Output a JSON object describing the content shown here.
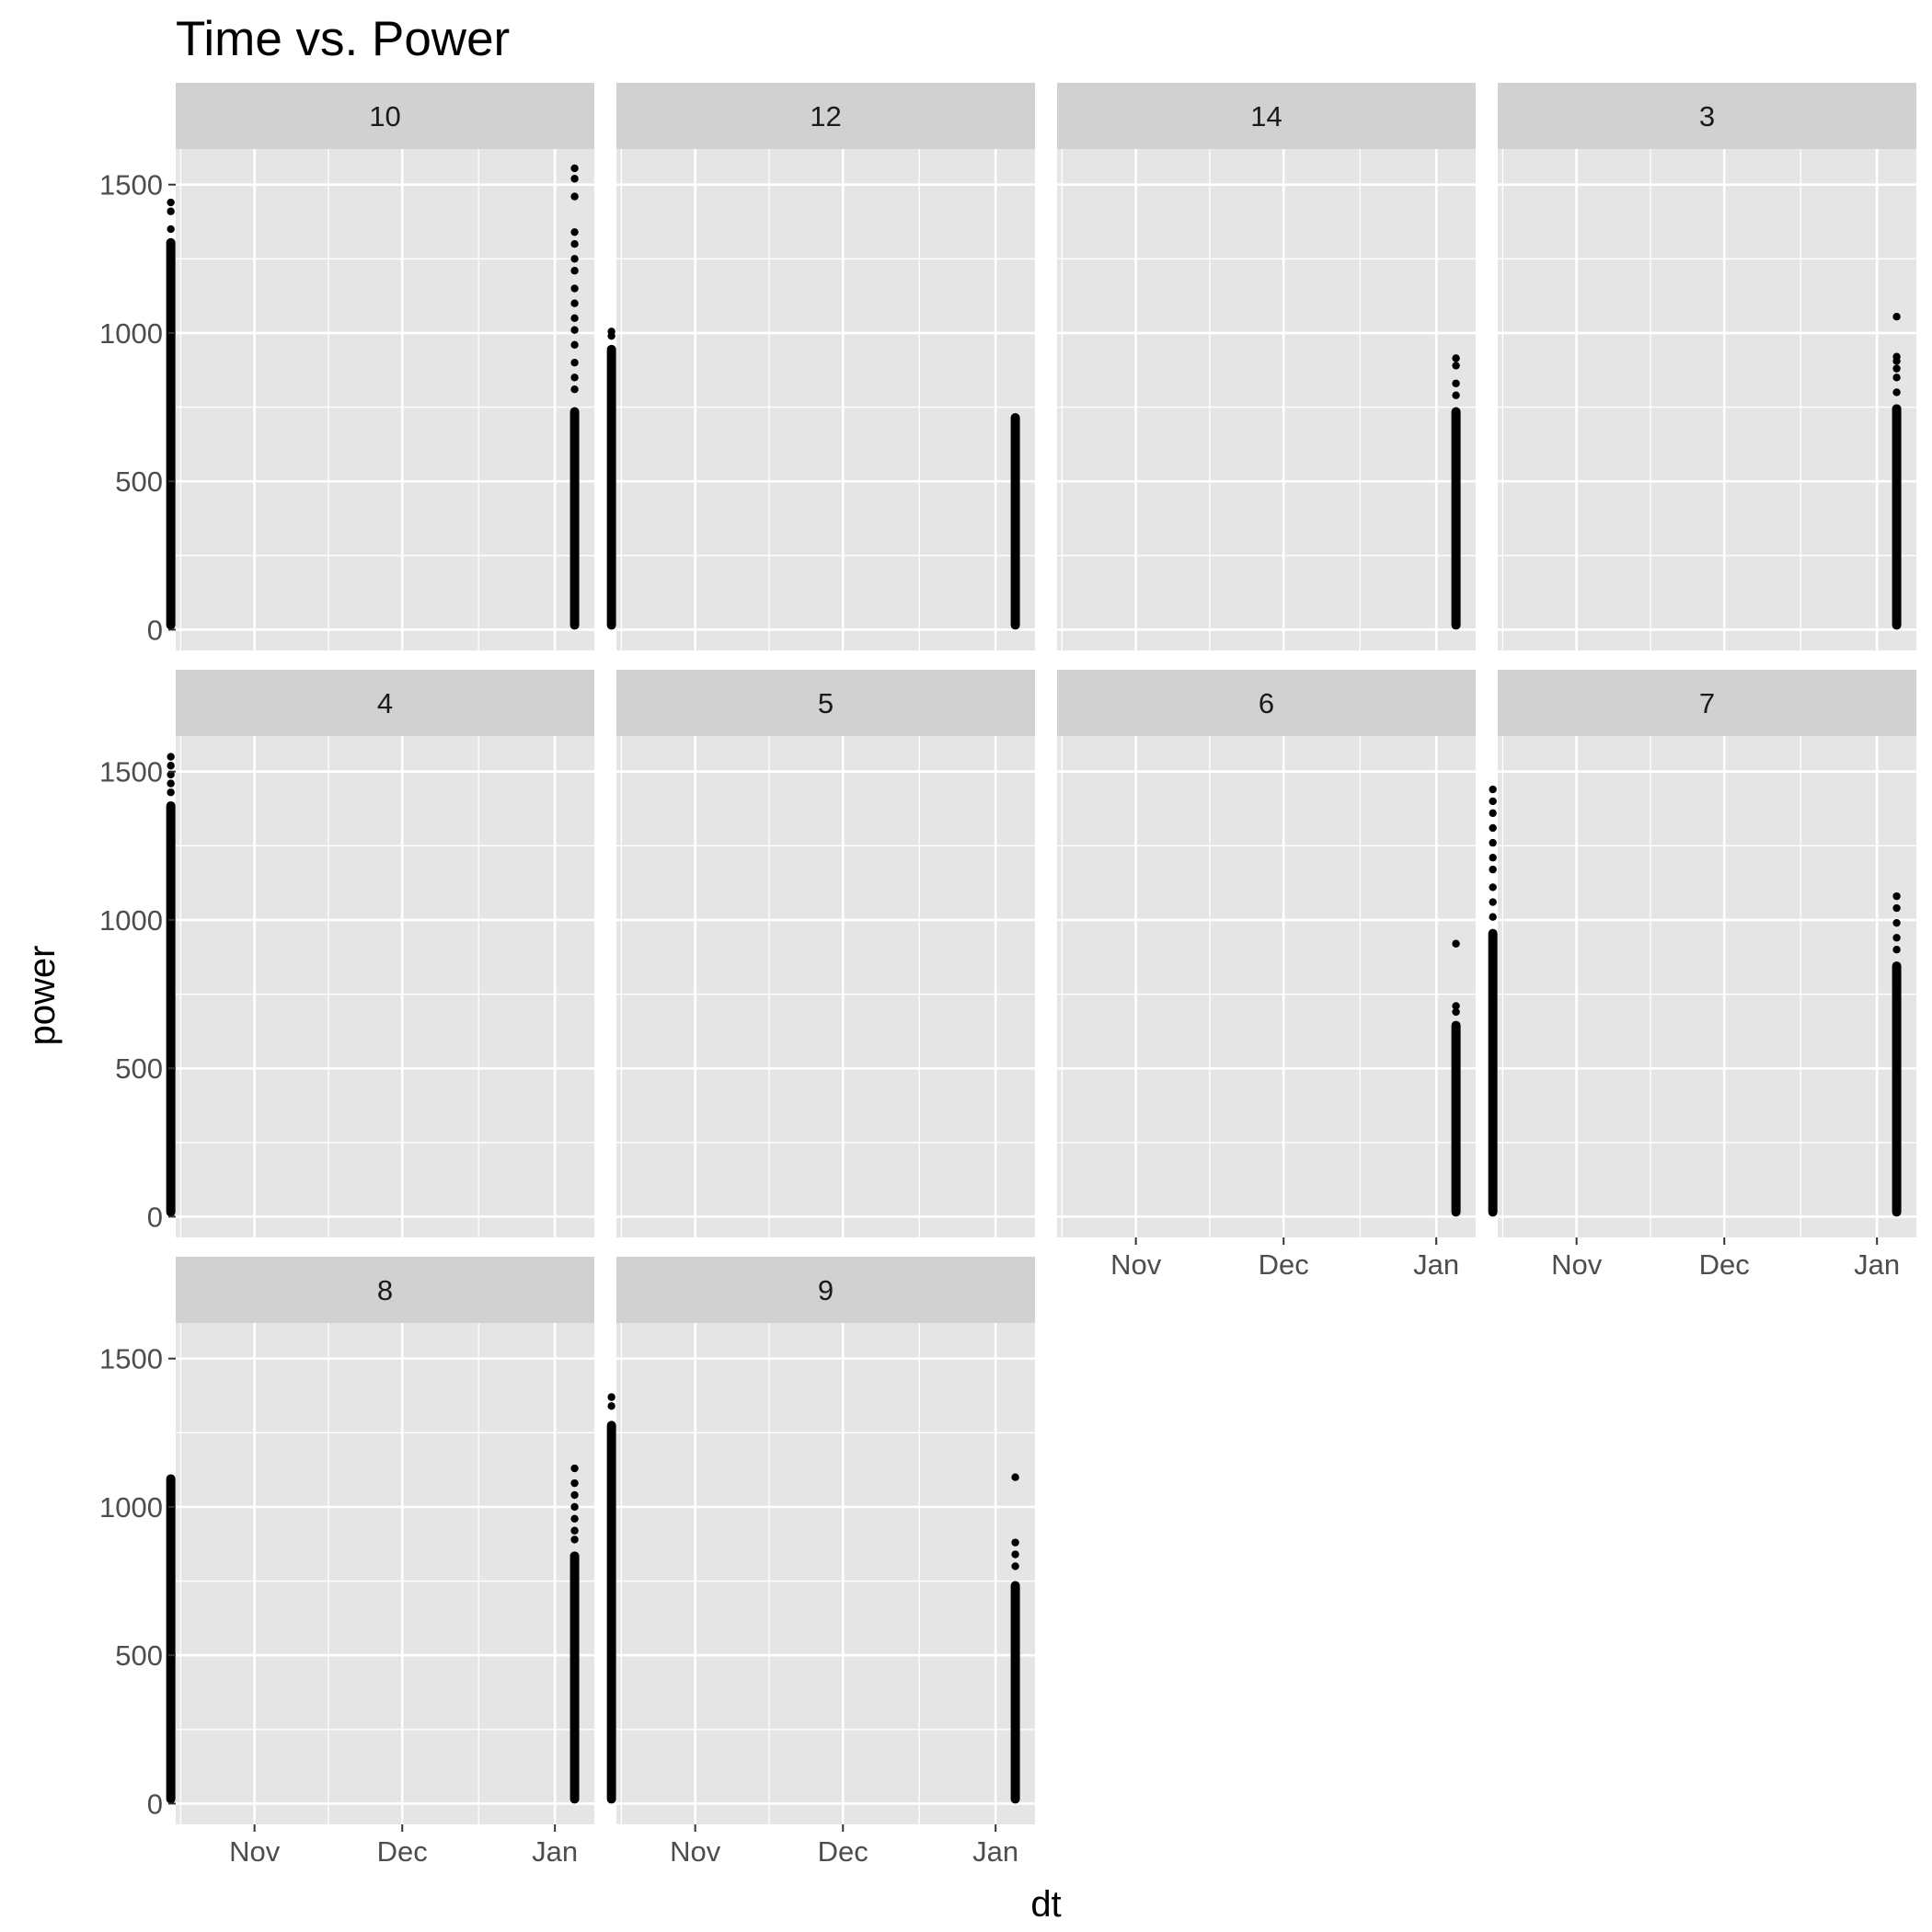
{
  "chart_data": {
    "type": "scatter",
    "title": "Time vs. Power",
    "xlabel": "dt",
    "ylabel": "power",
    "x_ticks": [
      {
        "date": "2017-11-01",
        "label": "Nov"
      },
      {
        "date": "2017-12-01",
        "label": "Dec"
      },
      {
        "date": "2018-01-01",
        "label": "Jan"
      }
    ],
    "xlim": [
      "2017-10-16",
      "2018-01-09"
    ],
    "y_ticks": [
      0,
      500,
      1000,
      1500
    ],
    "ylim": [
      -70,
      1620
    ],
    "grid": true,
    "panels": [
      {
        "label": "10",
        "clusters": [
          {
            "date": "2017-10-15",
            "min": 0,
            "max": 1320,
            "outliers": [
              1350,
              1410,
              1440
            ]
          },
          {
            "date": "2018-01-05",
            "min": 0,
            "max": 750,
            "outliers": [
              810,
              850,
              900,
              960,
              1010,
              1050,
              1100,
              1150,
              1210,
              1250,
              1300,
              1340,
              1460,
              1520,
              1555
            ]
          }
        ]
      },
      {
        "label": "12",
        "clusters": [
          {
            "date": "2017-10-15",
            "min": 0,
            "max": 960,
            "outliers": [
              990,
              1005
            ]
          },
          {
            "date": "2018-01-05",
            "min": 0,
            "max": 730,
            "outliers": []
          }
        ]
      },
      {
        "label": "14",
        "clusters": [
          {
            "date": "2018-01-05",
            "min": 0,
            "max": 750,
            "outliers": [
              790,
              830,
              890,
              915
            ]
          }
        ]
      },
      {
        "label": "3",
        "clusters": [
          {
            "date": "2018-01-05",
            "min": 0,
            "max": 760,
            "outliers": [
              800,
              850,
              880,
              905,
              920,
              1055
            ]
          }
        ]
      },
      {
        "label": "4",
        "clusters": [
          {
            "date": "2017-10-15",
            "min": 0,
            "max": 1400,
            "outliers": [
              1430,
              1460,
              1490,
              1520,
              1550
            ]
          }
        ]
      },
      {
        "label": "5",
        "clusters": []
      },
      {
        "label": "6",
        "clusters": [
          {
            "date": "2018-01-05",
            "min": 0,
            "max": 660,
            "outliers": [
              690,
              710,
              920
            ]
          }
        ]
      },
      {
        "label": "7",
        "clusters": [
          {
            "date": "2017-10-15",
            "min": 0,
            "max": 970,
            "outliers": [
              1010,
              1060,
              1110,
              1170,
              1210,
              1260,
              1310,
              1360,
              1400,
              1440
            ]
          },
          {
            "date": "2018-01-05",
            "min": 0,
            "max": 860,
            "outliers": [
              900,
              940,
              990,
              1040,
              1080
            ]
          }
        ]
      },
      {
        "label": "8",
        "clusters": [
          {
            "date": "2017-10-15",
            "min": 0,
            "max": 1110,
            "outliers": []
          },
          {
            "date": "2018-01-05",
            "min": 0,
            "max": 850,
            "outliers": [
              890,
              920,
              960,
              1000,
              1040,
              1080,
              1130
            ]
          }
        ]
      },
      {
        "label": "9",
        "clusters": [
          {
            "date": "2017-10-15",
            "min": 0,
            "max": 1290,
            "outliers": [
              1340,
              1370
            ]
          },
          {
            "date": "2018-01-05",
            "min": 0,
            "max": 750,
            "outliers": [
              800,
              840,
              880,
              1100
            ]
          }
        ]
      }
    ],
    "colors": {
      "panel_background": "#e5e5e5",
      "grid_line": "#ffffff",
      "strip_background": "#d1d1d1",
      "point": "#000000",
      "tick_text": "#4d4d4d"
    }
  }
}
